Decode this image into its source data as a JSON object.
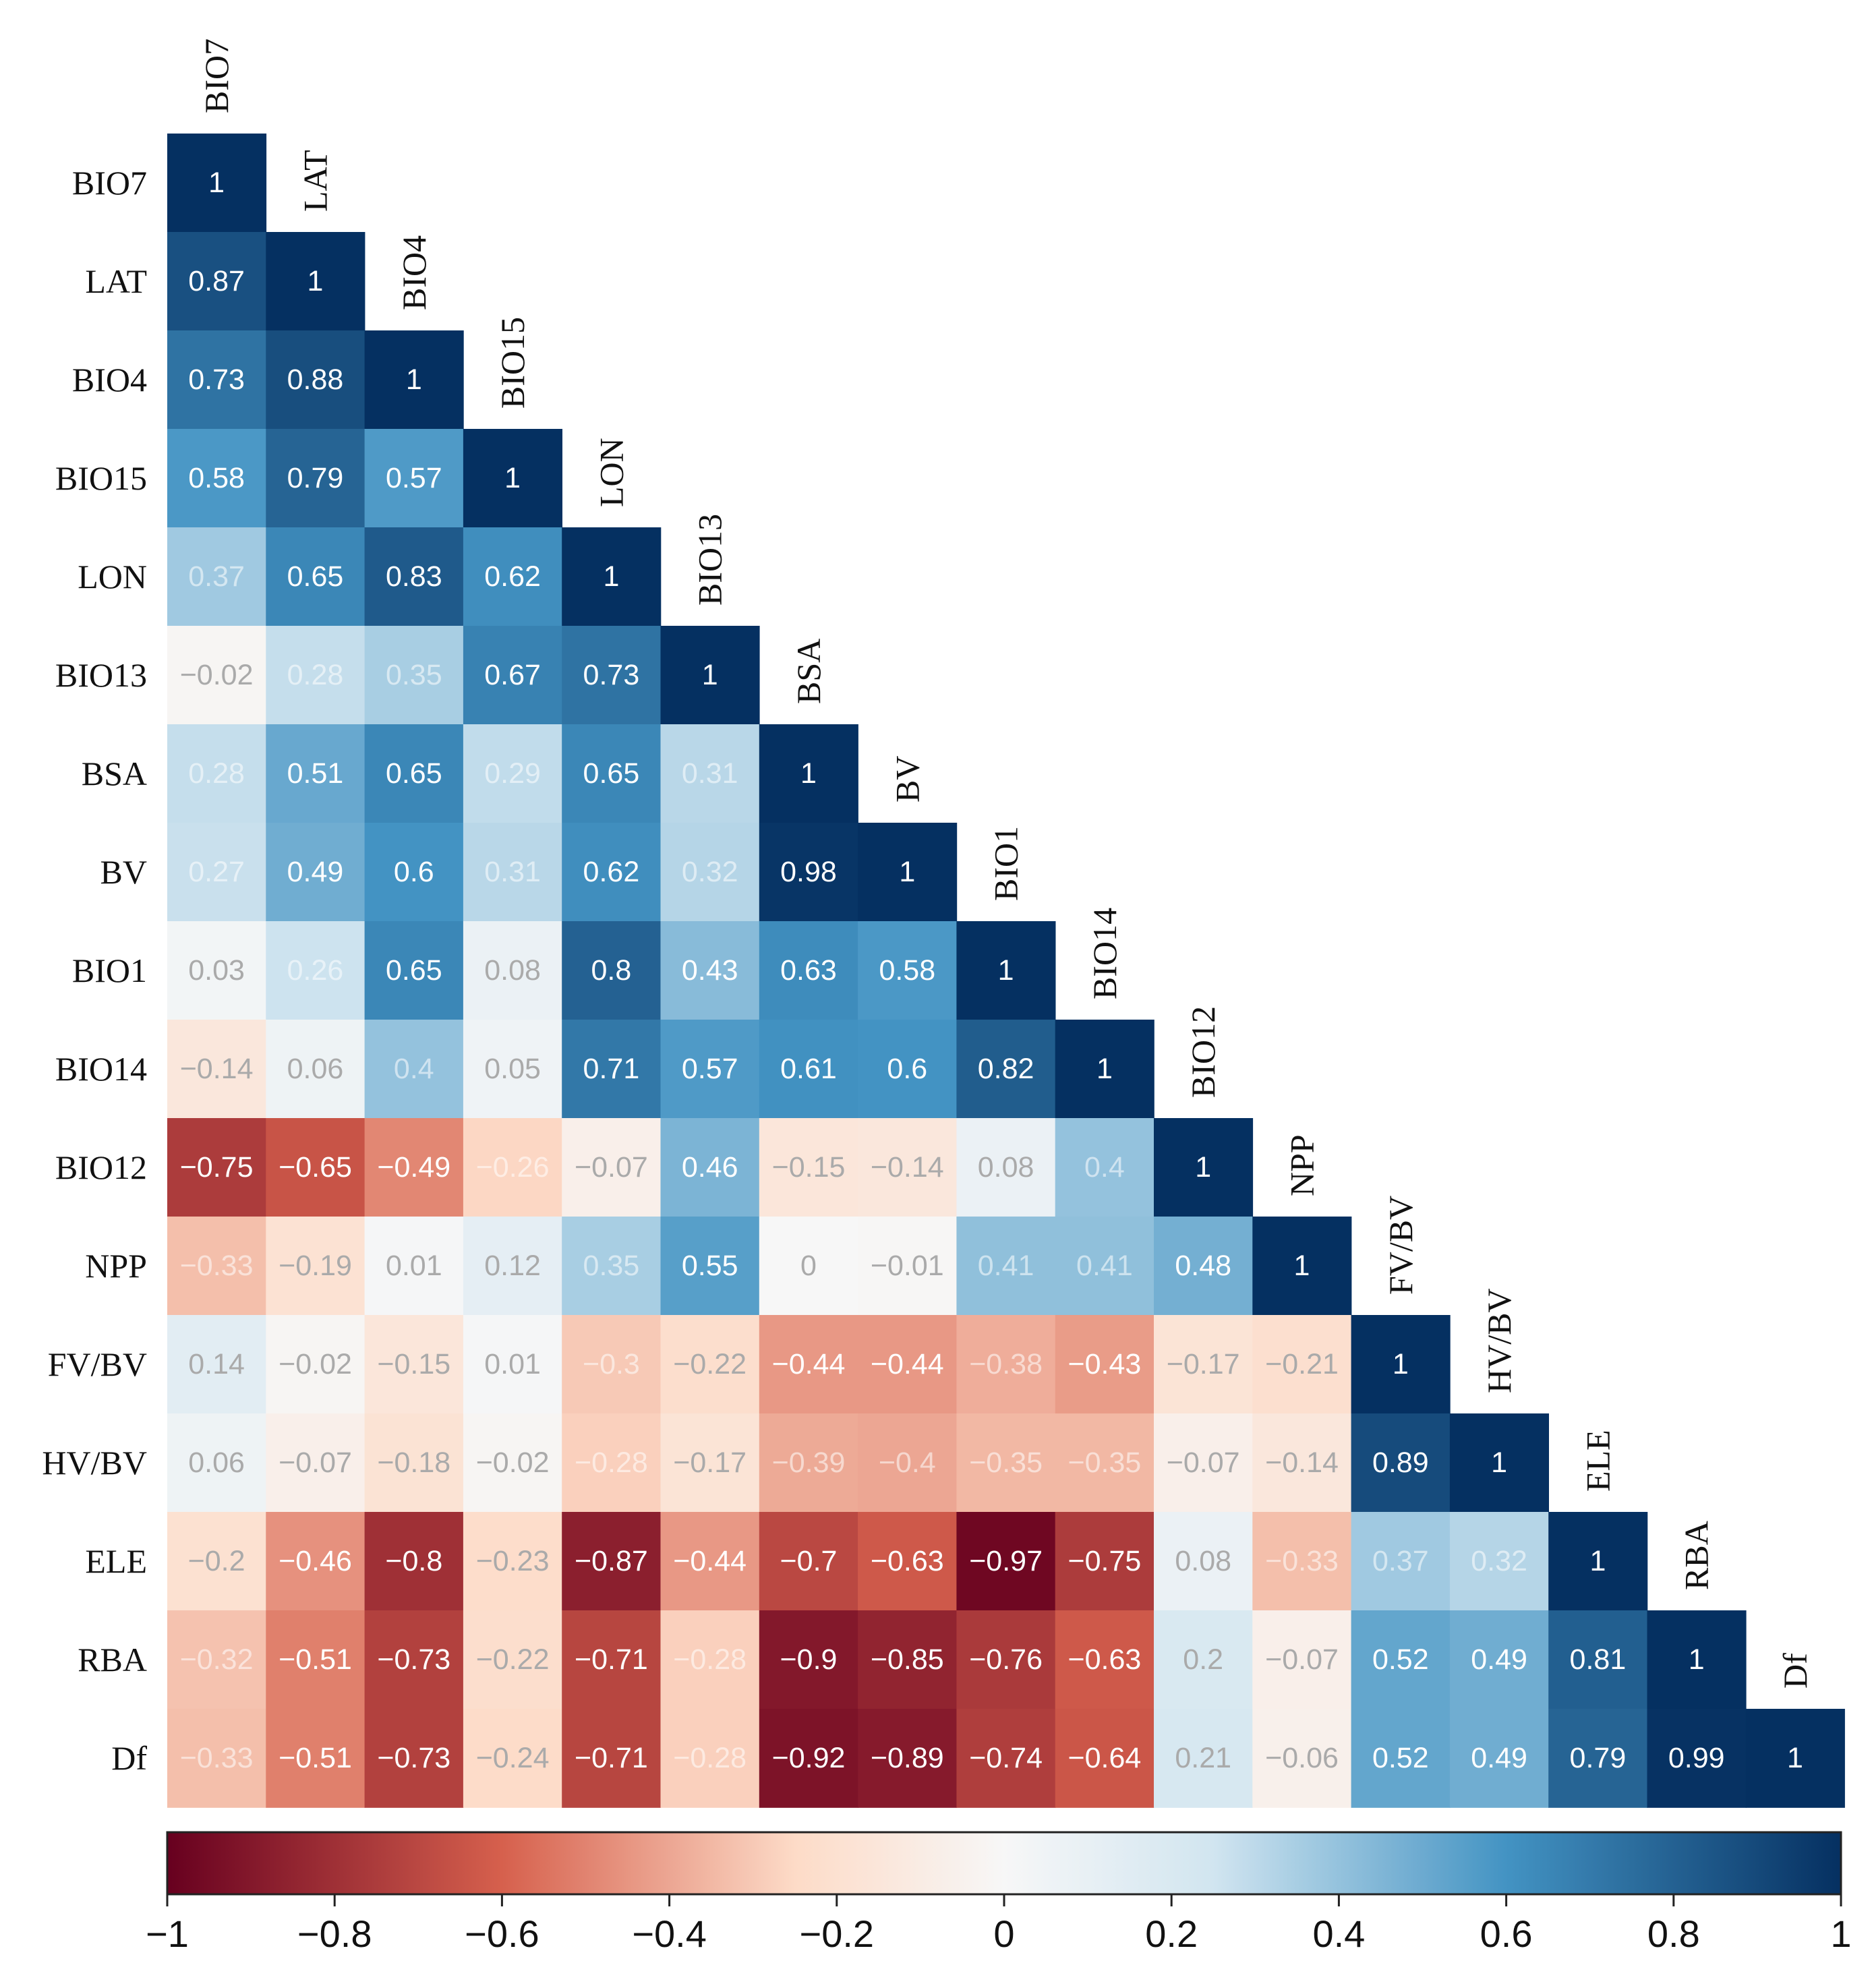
{
  "chart_data": {
    "type": "heatmap",
    "subtype": "lower-triangular correlation matrix",
    "variables": [
      "BIO7",
      "LAT",
      "BIO4",
      "BIO15",
      "LON",
      "BIO13",
      "BSA",
      "BV",
      "BIO1",
      "BIO14",
      "BIO12",
      "NPP",
      "FV/BV",
      "HV/BV",
      "ELE",
      "RBA",
      "Df"
    ],
    "matrix": [
      [
        1
      ],
      [
        0.87,
        1
      ],
      [
        0.73,
        0.88,
        1
      ],
      [
        0.58,
        0.79,
        0.57,
        1
      ],
      [
        0.37,
        0.65,
        0.83,
        0.62,
        1
      ],
      [
        -0.02,
        0.28,
        0.35,
        0.67,
        0.73,
        1
      ],
      [
        0.28,
        0.51,
        0.65,
        0.29,
        0.65,
        0.31,
        1
      ],
      [
        0.27,
        0.49,
        0.6,
        0.31,
        0.62,
        0.32,
        0.98,
        1
      ],
      [
        0.03,
        0.26,
        0.65,
        0.08,
        0.8,
        0.43,
        0.63,
        0.58,
        1
      ],
      [
        -0.14,
        0.06,
        0.4,
        0.05,
        0.71,
        0.57,
        0.61,
        0.6,
        0.82,
        1
      ],
      [
        -0.75,
        -0.65,
        -0.49,
        -0.26,
        -0.07,
        0.46,
        -0.15,
        -0.14,
        0.08,
        0.4,
        1
      ],
      [
        -0.33,
        -0.19,
        0.01,
        0.12,
        0.35,
        0.55,
        0,
        -0.01,
        0.41,
        0.41,
        0.48,
        1
      ],
      [
        0.14,
        -0.02,
        -0.15,
        0.01,
        -0.3,
        -0.22,
        -0.44,
        -0.44,
        -0.38,
        -0.43,
        -0.17,
        -0.21,
        1
      ],
      [
        0.06,
        -0.07,
        -0.18,
        -0.02,
        -0.28,
        -0.17,
        -0.39,
        -0.4,
        -0.35,
        -0.35,
        -0.07,
        -0.14,
        0.89,
        1
      ],
      [
        -0.2,
        -0.46,
        -0.8,
        -0.23,
        -0.87,
        -0.44,
        -0.7,
        -0.63,
        -0.97,
        -0.75,
        0.08,
        -0.33,
        0.37,
        0.32,
        1
      ],
      [
        -0.32,
        -0.51,
        -0.73,
        -0.22,
        -0.71,
        -0.28,
        -0.9,
        -0.85,
        -0.76,
        -0.63,
        0.2,
        -0.07,
        0.52,
        0.49,
        0.81,
        1
      ],
      [
        -0.33,
        -0.51,
        -0.73,
        -0.24,
        -0.71,
        -0.28,
        -0.92,
        -0.89,
        -0.74,
        -0.64,
        0.21,
        -0.06,
        0.52,
        0.49,
        0.79,
        0.99,
        1
      ]
    ],
    "colorbar": {
      "range": [
        -1,
        1
      ],
      "ticks": [
        -1,
        -0.8,
        -0.6,
        -0.4,
        -0.2,
        0,
        0.2,
        0.4,
        0.6,
        0.8,
        1
      ],
      "tick_labels": [
        "−1",
        "−0.8",
        "−0.6",
        "−0.4",
        "−0.2",
        "0",
        "0.2",
        "0.4",
        "0.6",
        "0.8",
        "1"
      ],
      "colormap": "RdBu diverging (red negative, white zero, blue positive)"
    },
    "colors": {
      "neg_end": "#67001f",
      "neg_mid": "#d6604d",
      "neg_light": "#fddbc7",
      "zero": "#f7f7f7",
      "pos_light": "#d1e5f0",
      "pos_mid": "#4393c3",
      "pos_end": "#053061"
    }
  }
}
